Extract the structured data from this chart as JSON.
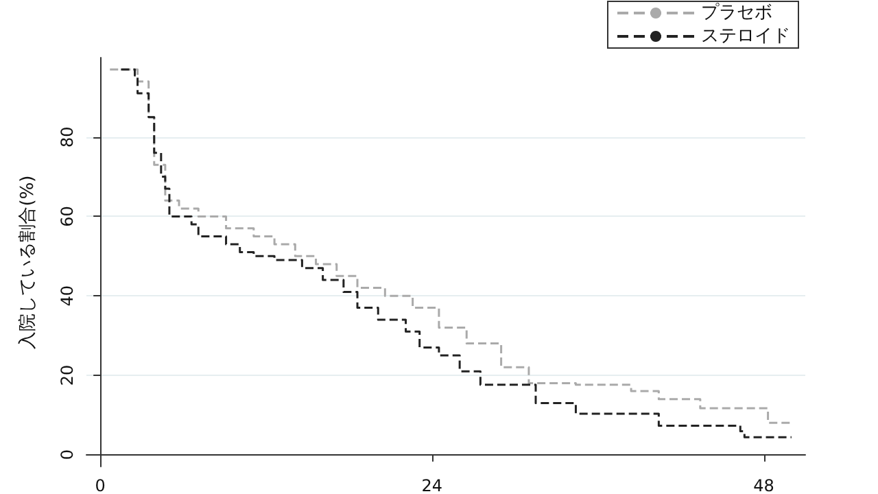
{
  "chart_data": {
    "type": "step",
    "ylabel": "入院している割合(%)",
    "xlim": [
      -1,
      51
    ],
    "xticks": [
      0,
      24,
      48
    ],
    "ylim": [
      -3,
      100
    ],
    "yticks": [
      0,
      20,
      40,
      60,
      80
    ],
    "grid": "y",
    "legend": "top right",
    "line_style": "dashed",
    "marker": "none",
    "series": [
      {
        "name": "プラセボ",
        "color": "#aaaaaa",
        "x": [
          0.7,
          2.7,
          3.5,
          3.9,
          4.7,
          5.7,
          7.1,
          9.1,
          11.1,
          12.6,
          14.1,
          15.6,
          17.1,
          18.6,
          20.6,
          22.6,
          24.5,
          26.5,
          29,
          31,
          34.4,
          38.4,
          40.4,
          43.4,
          48.3,
          50
        ],
        "values": [
          97,
          94,
          85,
          73,
          64,
          62,
          60,
          57,
          55,
          53,
          50,
          48,
          45,
          42,
          40,
          37,
          32,
          28,
          22,
          18,
          17.6,
          16,
          14,
          11.7,
          8,
          8
        ]
      },
      {
        "name": "ステロイド",
        "color": "#222222",
        "x": [
          1.5,
          2.5,
          2.7,
          3.5,
          3.9,
          4.4,
          4.7,
          5.0,
          6.6,
          7.1,
          9.1,
          10.1,
          11.1,
          12.6,
          14.6,
          16.1,
          17.6,
          18.6,
          20.1,
          22.1,
          23.1,
          24.5,
          26,
          27.5,
          31.5,
          34.4,
          40.4,
          46.3,
          46.6,
          50
        ],
        "values": [
          97,
          95.5,
          91,
          85,
          76,
          70,
          67,
          60,
          58,
          55,
          53,
          51,
          50,
          49,
          47,
          44,
          41,
          37,
          34,
          31,
          27,
          25,
          21,
          17.6,
          13,
          10.3,
          7.3,
          5.9,
          4.4,
          4.4
        ]
      }
    ]
  }
}
